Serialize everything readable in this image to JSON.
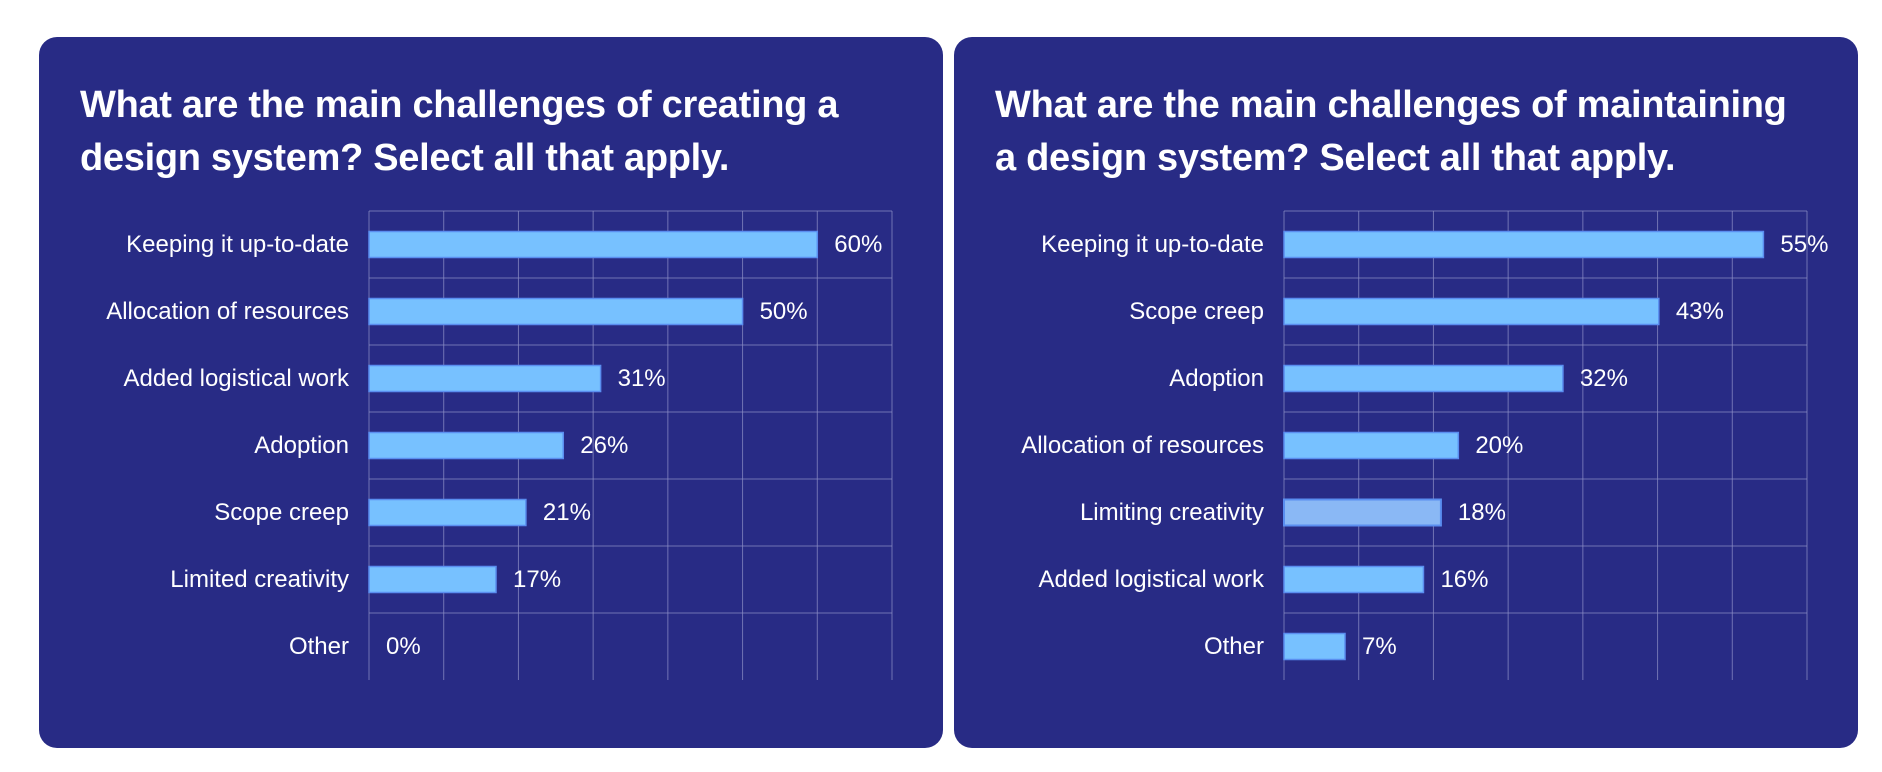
{
  "colors": {
    "page_background": "#ffffff",
    "panel_background": "#282b85",
    "bar_fill": "#77c1ff",
    "bar_fill_faded": "#8ab8f5",
    "bar_stroke": "#5a8ef0",
    "grid": "#8a8cc4",
    "text": "#ffffff"
  },
  "chart_data": [
    {
      "type": "bar",
      "orientation": "horizontal",
      "title": "What are the main challenges of creating a design system? Select all that apply.",
      "categories": [
        "Keeping it up-to-date",
        "Allocation of resources",
        "Added logistical work",
        "Adoption",
        "Scope creep",
        "Limited creativity",
        "Other"
      ],
      "values": [
        60,
        50,
        31,
        26,
        21,
        17,
        0
      ],
      "value_labels": [
        "60%",
        "50%",
        "31%",
        "26%",
        "21%",
        "17%",
        "0%"
      ],
      "unit": "%",
      "xlim": [
        0,
        70
      ],
      "grid": true,
      "xlabel": "",
      "ylabel": ""
    },
    {
      "type": "bar",
      "orientation": "horizontal",
      "title": "What are the main challenges of maintaining a design system? Select all that apply.",
      "categories": [
        "Keeping it up-to-date",
        "Scope creep",
        "Adoption",
        "Allocation of resources",
        "Limiting creativity",
        "Added logistical work",
        "Other"
      ],
      "values": [
        55,
        43,
        32,
        20,
        18,
        16,
        7
      ],
      "value_labels": [
        "55%",
        "43%",
        "32%",
        "20%",
        "18%",
        "16%",
        "7%"
      ],
      "highlighted_category": "Limiting creativity",
      "unit": "%",
      "xlim": [
        0,
        60
      ],
      "grid": true,
      "xlabel": "",
      "ylabel": ""
    }
  ]
}
